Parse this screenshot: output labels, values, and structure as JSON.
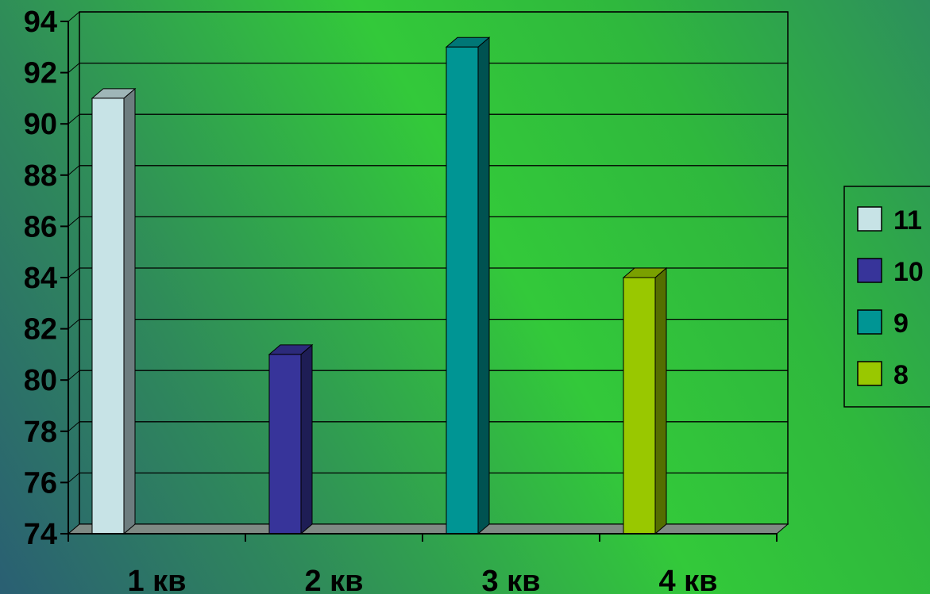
{
  "chart_data": {
    "type": "bar",
    "categories": [
      "1 кв",
      "2 кв",
      "3 кв",
      "4 кв"
    ],
    "series": [
      {
        "name": "11",
        "color": "#c7e3e6",
        "values": [
          91,
          null,
          null,
          null
        ]
      },
      {
        "name": "10",
        "color": "#37349a",
        "values": [
          null,
          81,
          null,
          null
        ]
      },
      {
        "name": "9",
        "color": "#009594",
        "values": [
          null,
          null,
          93,
          null
        ]
      },
      {
        "name": "8",
        "color": "#99c800",
        "values": [
          null,
          null,
          null,
          84
        ]
      }
    ],
    "ylim": [
      74,
      94
    ],
    "yticks": [
      "74",
      "76",
      "78",
      "80",
      "82",
      "84",
      "86",
      "88",
      "90",
      "92",
      "94"
    ],
    "grid": true,
    "legend_position": "right"
  }
}
